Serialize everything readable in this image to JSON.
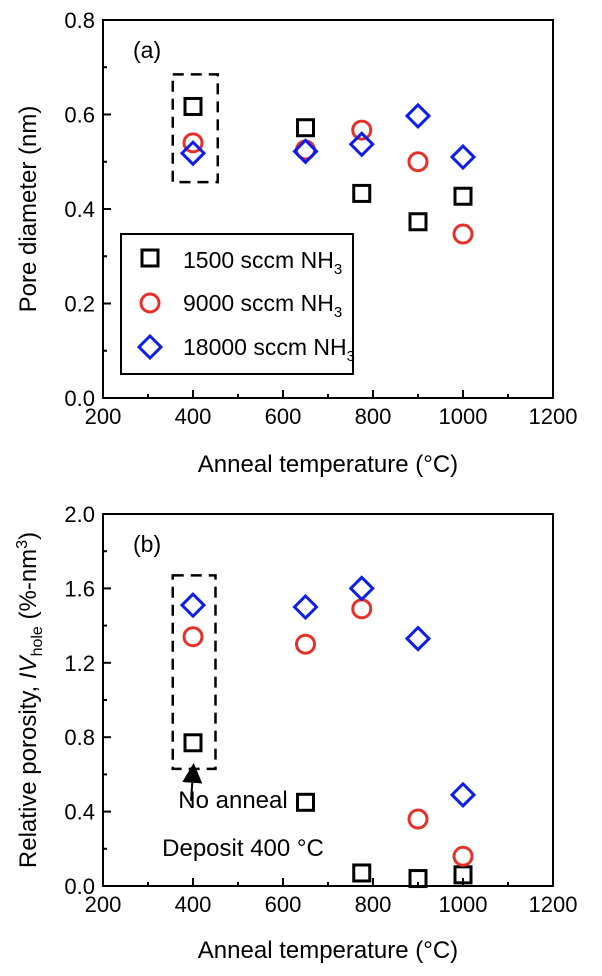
{
  "chart_data": [
    {
      "panel": "(a)",
      "type": "scatter",
      "xlabel": "Anneal temperature (°C)",
      "ylabel": "Pore diameter (nm)",
      "xlim": [
        200,
        1200
      ],
      "ylim": [
        0,
        0.8
      ],
      "xticks": [
        200,
        400,
        600,
        800,
        1000,
        1200
      ],
      "yticks": [
        0.0,
        0.2,
        0.4,
        0.6,
        0.8
      ],
      "ytick_labels": [
        "0.0",
        "0.2",
        "0.4",
        "0.6",
        "0.8"
      ],
      "grid": false,
      "legend_position": "lower-left",
      "series": [
        {
          "name": "1500 sccm NH3",
          "name_main": "1500 sccm NH",
          "name_sub": "3",
          "marker": "square",
          "color": "#000000",
          "points": [
            [
              400,
              0.617
            ],
            [
              650,
              0.572
            ],
            [
              775,
              0.433
            ],
            [
              900,
              0.373
            ],
            [
              1000,
              0.427
            ]
          ]
        },
        {
          "name": "9000 sccm NH3",
          "name_main": "9000 sccm NH",
          "name_sub": "3",
          "marker": "circle",
          "color": "#e8302a",
          "points": [
            [
              400,
              0.54
            ],
            [
              650,
              0.525
            ],
            [
              775,
              0.567
            ],
            [
              900,
              0.5
            ],
            [
              1000,
              0.347
            ]
          ]
        },
        {
          "name": "18000 sccm NH3",
          "name_main": "18000 sccm NH",
          "name_sub": "3",
          "marker": "diamond",
          "color": "#0d1ee8",
          "points": [
            [
              400,
              0.518
            ],
            [
              650,
              0.522
            ],
            [
              775,
              0.537
            ],
            [
              900,
              0.597
            ],
            [
              1000,
              0.51
            ]
          ]
        }
      ],
      "highlight_box": {
        "x": [
          355,
          455
        ],
        "y": [
          0.457,
          0.685
        ]
      }
    },
    {
      "panel": "(b)",
      "type": "scatter",
      "xlabel": "Anneal temperature (°C)",
      "ylabel_main": "Relative porosity, ",
      "ylabel_italic": "IV",
      "ylabel_sub": "hole",
      "ylabel_end_a": " (%-nm",
      "ylabel_sup": "3",
      "ylabel_end_b": ")",
      "xlim": [
        200,
        1200
      ],
      "ylim": [
        0,
        2.0
      ],
      "xticks": [
        200,
        400,
        600,
        800,
        1000,
        1200
      ],
      "yticks": [
        0.0,
        0.4,
        0.8,
        1.2,
        1.6,
        2.0
      ],
      "ytick_labels": [
        "0.0",
        "0.4",
        "0.8",
        "1.2",
        "1.6",
        "2.0"
      ],
      "grid": false,
      "series": [
        {
          "name": "1500 sccm NH3",
          "marker": "square",
          "color": "#000000",
          "points": [
            [
              400,
              0.77
            ],
            [
              650,
              0.45
            ],
            [
              775,
              0.07
            ],
            [
              900,
              0.04
            ],
            [
              1000,
              0.06
            ]
          ]
        },
        {
          "name": "9000 sccm NH3",
          "marker": "circle",
          "color": "#e8302a",
          "points": [
            [
              400,
              1.34
            ],
            [
              650,
              1.3
            ],
            [
              775,
              1.49
            ],
            [
              900,
              0.36
            ],
            [
              1000,
              0.16
            ]
          ]
        },
        {
          "name": "18000 sccm NH3",
          "marker": "diamond",
          "color": "#0d1ee8",
          "points": [
            [
              400,
              1.51
            ],
            [
              650,
              1.5
            ],
            [
              775,
              1.6
            ],
            [
              900,
              1.33
            ],
            [
              1000,
              0.49
            ]
          ]
        }
      ],
      "highlight_box": {
        "x": [
          355,
          450
        ],
        "y": [
          0.63,
          1.67
        ]
      },
      "annotation": {
        "lines": [
          "No anneal",
          "Deposit 400 °C"
        ],
        "arrow_to": [
          400,
          0.63
        ]
      }
    }
  ]
}
